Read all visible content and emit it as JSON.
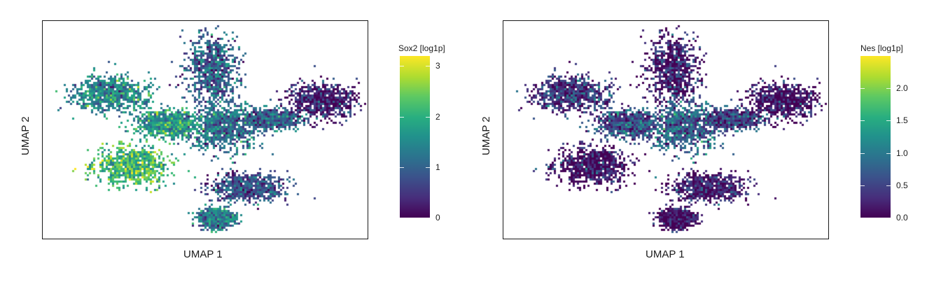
{
  "chart_data": [
    {
      "type": "scatter",
      "title": "",
      "xlabel": "UMAP 1",
      "ylabel": "UMAP 2",
      "colorbar": {
        "title": "Sox2 [log1p]",
        "range": [
          0,
          3.2
        ],
        "ticks": [
          0,
          1,
          2,
          3
        ],
        "tick_labels": [
          "0",
          "1",
          "2",
          "3"
        ],
        "colormap": "viridis"
      },
      "clusters": [
        {
          "name": "top-lobe",
          "center": [
            0.52,
            0.22
          ],
          "spread": [
            0.07,
            0.14
          ],
          "mean": 1.0
        },
        {
          "name": "center-hub",
          "center": [
            0.55,
            0.48
          ],
          "spread": [
            0.09,
            0.1
          ],
          "mean": 1.2
        },
        {
          "name": "left-arm",
          "center": [
            0.2,
            0.33
          ],
          "spread": [
            0.1,
            0.07
          ],
          "mean": 1.5
        },
        {
          "name": "left-lower-block",
          "center": [
            0.27,
            0.66
          ],
          "spread": [
            0.1,
            0.08
          ],
          "mean": 2.2
        },
        {
          "name": "left-mid-band",
          "center": [
            0.38,
            0.47
          ],
          "spread": [
            0.08,
            0.05
          ],
          "mean": 1.7
        },
        {
          "name": "lower-right-arm",
          "center": [
            0.63,
            0.76
          ],
          "spread": [
            0.1,
            0.06
          ],
          "mean": 0.8
        },
        {
          "name": "bottom-tail",
          "center": [
            0.53,
            0.9
          ],
          "spread": [
            0.05,
            0.04
          ],
          "mean": 1.4
        },
        {
          "name": "right-arm",
          "center": [
            0.86,
            0.36
          ],
          "spread": [
            0.09,
            0.07
          ],
          "mean": 0.3
        },
        {
          "name": "center-right-link",
          "center": [
            0.7,
            0.45
          ],
          "spread": [
            0.08,
            0.04
          ],
          "mean": 1.0
        }
      ]
    },
    {
      "type": "scatter",
      "title": "",
      "xlabel": "UMAP 1",
      "ylabel": "UMAP 2",
      "colorbar": {
        "title": "Nes [log1p]",
        "range": [
          0,
          2.5
        ],
        "ticks": [
          0.0,
          0.5,
          1.0,
          1.5,
          2.0
        ],
        "tick_labels": [
          "0.0",
          "0.5",
          "1.0",
          "1.5",
          "2.0"
        ],
        "colormap": "viridis"
      },
      "clusters": [
        {
          "name": "top-lobe",
          "center": [
            0.52,
            0.22
          ],
          "spread": [
            0.07,
            0.14
          ],
          "mean": 0.2
        },
        {
          "name": "center-hub",
          "center": [
            0.55,
            0.48
          ],
          "spread": [
            0.09,
            0.1
          ],
          "mean": 0.8
        },
        {
          "name": "left-arm",
          "center": [
            0.2,
            0.33
          ],
          "spread": [
            0.1,
            0.07
          ],
          "mean": 0.4
        },
        {
          "name": "left-lower-block",
          "center": [
            0.27,
            0.66
          ],
          "spread": [
            0.1,
            0.08
          ],
          "mean": 0.1
        },
        {
          "name": "left-mid-band",
          "center": [
            0.38,
            0.47
          ],
          "spread": [
            0.08,
            0.05
          ],
          "mean": 0.6
        },
        {
          "name": "lower-right-arm",
          "center": [
            0.63,
            0.76
          ],
          "spread": [
            0.1,
            0.06
          ],
          "mean": 0.2
        },
        {
          "name": "bottom-tail",
          "center": [
            0.53,
            0.9
          ],
          "spread": [
            0.05,
            0.04
          ],
          "mean": 0.1
        },
        {
          "name": "right-arm",
          "center": [
            0.86,
            0.36
          ],
          "spread": [
            0.09,
            0.07
          ],
          "mean": 0.1
        },
        {
          "name": "center-right-link",
          "center": [
            0.7,
            0.45
          ],
          "spread": [
            0.08,
            0.04
          ],
          "mean": 0.5
        }
      ]
    }
  ]
}
